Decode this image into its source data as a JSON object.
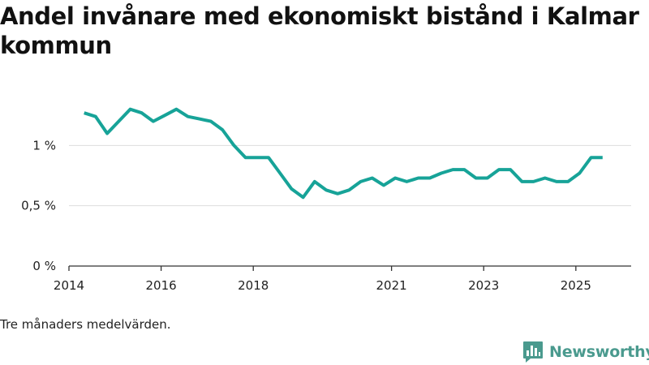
{
  "chart_data": {
    "type": "line",
    "title": "Andel invånare med ekonomiskt bistånd i Kalmar kommun",
    "xlabel": "",
    "ylabel": "",
    "x_ticks": [
      {
        "label": "2014",
        "value": 2014.0
      },
      {
        "label": "2016",
        "value": 2016.0
      },
      {
        "label": "2018",
        "value": 2018.0
      },
      {
        "label": "2021",
        "value": 2021.0
      },
      {
        "label": "2023",
        "value": 2023.0
      },
      {
        "label": "2025",
        "value": 2025.0
      }
    ],
    "y_ticks": [
      {
        "label": "0 %",
        "value": 0
      },
      {
        "label": "0,5 %",
        "value": 0.5
      },
      {
        "label": "1 %",
        "value": 1.0
      }
    ],
    "xlim": [
      2014.0,
      2026.2
    ],
    "ylim": [
      0,
      1.5
    ],
    "series": [
      {
        "name": "Andel invånare med ekonomiskt bistånd",
        "color": "#17a398",
        "x": [
          2014.33,
          2014.58,
          2014.83,
          2015.08,
          2015.33,
          2015.58,
          2015.83,
          2016.08,
          2016.33,
          2016.58,
          2016.83,
          2017.08,
          2017.33,
          2017.58,
          2017.83,
          2018.08,
          2018.33,
          2018.58,
          2018.83,
          2019.08,
          2019.33,
          2019.58,
          2019.83,
          2020.08,
          2020.33,
          2020.58,
          2020.83,
          2021.08,
          2021.33,
          2021.58,
          2021.83,
          2022.08,
          2022.33,
          2022.58,
          2022.83,
          2023.08,
          2023.33,
          2023.58,
          2023.83,
          2024.08,
          2024.33,
          2024.58,
          2024.83,
          2025.08,
          2025.33,
          2025.58
        ],
        "values": [
          1.27,
          1.24,
          1.1,
          1.2,
          1.3,
          1.27,
          1.2,
          1.25,
          1.3,
          1.24,
          1.22,
          1.2,
          1.13,
          1.0,
          0.9,
          0.9,
          0.9,
          0.77,
          0.64,
          0.57,
          0.7,
          0.63,
          0.6,
          0.63,
          0.7,
          0.73,
          0.67,
          0.73,
          0.7,
          0.73,
          0.73,
          0.77,
          0.8,
          0.8,
          0.73,
          0.73,
          0.8,
          0.8,
          0.7,
          0.7,
          0.73,
          0.7,
          0.7,
          0.77,
          0.9,
          0.9
        ]
      }
    ]
  },
  "caption": "Tre månaders medelvärden.",
  "brand": {
    "name": "Newsworthy",
    "icon": "newsworthy-logo-icon",
    "color": "#4a9a8e"
  },
  "colors": {
    "line": "#17a398",
    "grid": "#dddddd",
    "axis": "#333333"
  }
}
